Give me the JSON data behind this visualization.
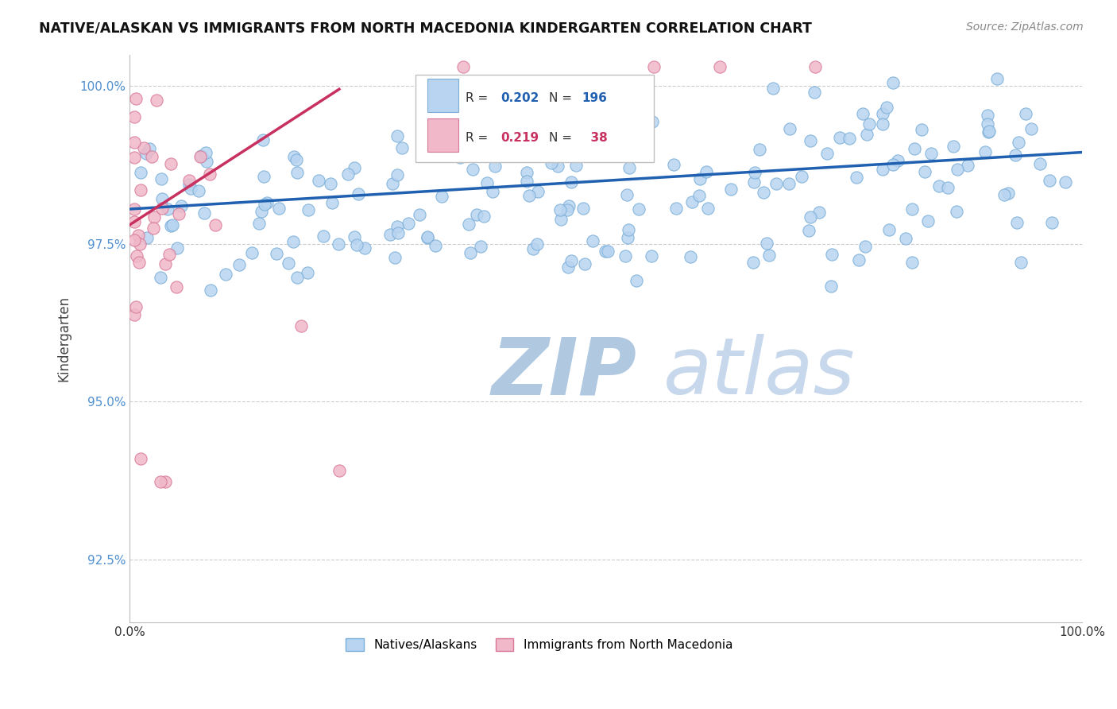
{
  "title": "NATIVE/ALASKAN VS IMMIGRANTS FROM NORTH MACEDONIA KINDERGARTEN CORRELATION CHART",
  "source": "Source: ZipAtlas.com",
  "ylabel": "Kindergarten",
  "xlim": [
    0.0,
    1.0
  ],
  "ylim": [
    0.915,
    1.005
  ],
  "yticks": [
    0.925,
    0.95,
    0.975,
    1.0
  ],
  "ytick_labels": [
    "92.5%",
    "95.0%",
    "97.5%",
    "100.0%"
  ],
  "xticks": [
    0.0,
    1.0
  ],
  "xtick_labels": [
    "0.0%",
    "100.0%"
  ],
  "blue_label": "Natives/Alaskans",
  "pink_label": "Immigrants from North Macedonia",
  "blue_R": 0.202,
  "blue_N": 196,
  "pink_R": 0.219,
  "pink_N": 38,
  "blue_scatter_color": "#b8d4f0",
  "blue_edge_color": "#7aaed8",
  "pink_scatter_color": "#f0b8c8",
  "pink_edge_color": "#d87898",
  "blue_line_color": "#2060b0",
  "pink_line_color": "#c83060",
  "blue_trend_x0": 0.0,
  "blue_trend_x1": 1.0,
  "blue_trend_y0": 0.9805,
  "blue_trend_y1": 0.9895,
  "pink_trend_x0": 0.0,
  "pink_trend_x1": 0.22,
  "pink_trend_y0": 0.978,
  "pink_trend_y1": 0.9995,
  "watermark_zip": "ZIP",
  "watermark_atlas": "atlas",
  "watermark_zip_color": "#b0c8e0",
  "watermark_atlas_color": "#c8d8ec",
  "grid_color": "#cccccc",
  "background_color": "#ffffff",
  "tick_color": "#5090d0",
  "marker_size": 120
}
